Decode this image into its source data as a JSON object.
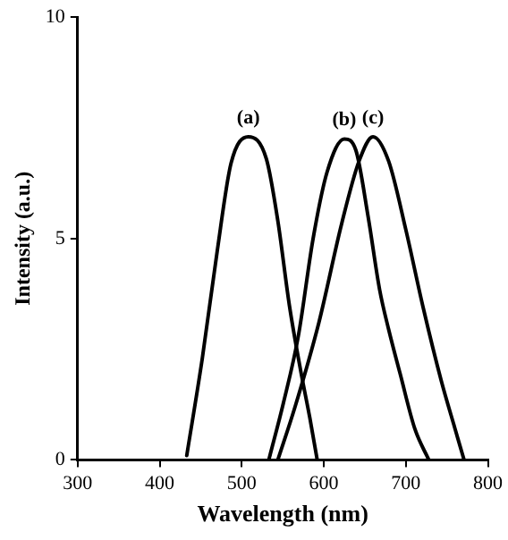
{
  "chart_data": {
    "type": "line",
    "xlabel": "Wavelength (nm)",
    "ylabel": "Intensity (a.u.)",
    "xlim": [
      300,
      800
    ],
    "xticks": [
      300,
      400,
      500,
      600,
      700,
      800
    ],
    "ylim": [
      0,
      10
    ],
    "yticks": [
      0,
      5,
      10
    ],
    "grid": false,
    "legend": false,
    "marker": "none",
    "line_style": "solid",
    "series": [
      {
        "color": "#000000",
        "x": [
          433,
          452,
          470,
          487,
          508,
          530,
          544,
          558,
          572,
          583,
          592
        ],
        "values": [
          0.1,
          2.3,
          4.7,
          6.7,
          7.3,
          6.8,
          5.4,
          3.5,
          2.0,
          0.95,
          0
        ]
      },
      {
        "color": "#000000",
        "x": [
          533,
          551,
          569,
          587,
          604,
          625,
          639,
          654,
          668,
          679,
          693,
          711,
          728
        ],
        "values": [
          0,
          1.3,
          2.8,
          5.0,
          6.5,
          7.25,
          7.0,
          5.5,
          3.85,
          2.95,
          1.95,
          0.7,
          0
        ]
      },
      {
        "color": "#000000",
        "x": [
          544,
          565,
          594,
          622,
          643,
          660,
          679,
          700,
          721,
          743,
          760,
          771
        ],
        "values": [
          0,
          1.2,
          3.1,
          5.35,
          6.75,
          7.3,
          6.75,
          5.2,
          3.45,
          1.8,
          0.7,
          0
        ]
      }
    ],
    "annotations": [
      "(a)",
      "(b)",
      "(c)"
    ]
  }
}
